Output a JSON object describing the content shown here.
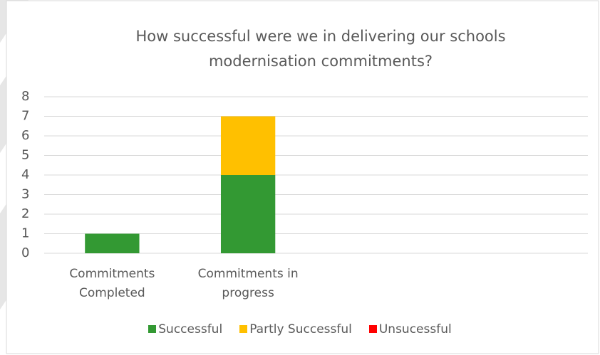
{
  "chart_data": {
    "type": "bar",
    "stacked": true,
    "title": "How successful were we in delivering our schools modernisation commitments?",
    "categories": [
      "Commitments Completed",
      "Commitments in progress",
      null,
      null
    ],
    "series": [
      {
        "name": "Successful",
        "color": "#339933",
        "values": [
          1,
          4,
          null,
          null
        ]
      },
      {
        "name": "Partly Successful",
        "color": "#ffc000",
        "values": [
          0,
          3,
          null,
          null
        ]
      },
      {
        "name": "Unsucessful",
        "color": "#ff0000",
        "values": [
          0,
          0,
          null,
          null
        ]
      }
    ],
    "ylim": [
      0,
      8
    ],
    "yticks": [
      0,
      1,
      2,
      3,
      4,
      5,
      6,
      7,
      8
    ],
    "grid": true,
    "legend": "bottom"
  }
}
